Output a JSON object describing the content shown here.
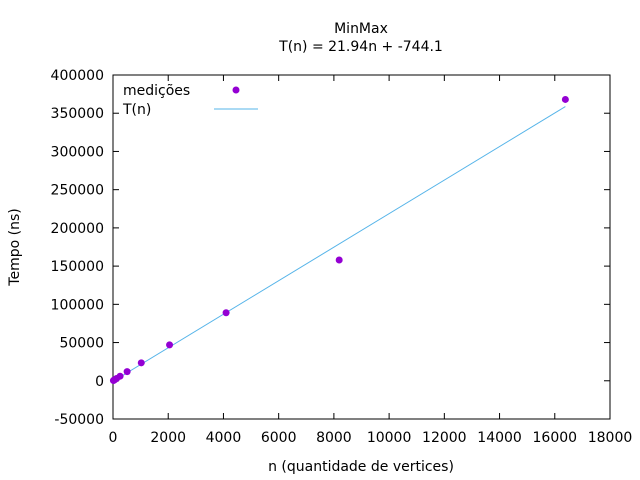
{
  "chart_data": {
    "type": "scatter",
    "title": "MinMax",
    "subtitle": "T(n) = 21.94n + -744.1",
    "xlabel": "n (quantidade de vertices)",
    "ylabel": "Tempo (ns)",
    "xlim": [
      0,
      18000
    ],
    "ylim": [
      -50000,
      400000
    ],
    "xticks": [
      0,
      2000,
      4000,
      6000,
      8000,
      10000,
      12000,
      14000,
      16000,
      18000
    ],
    "yticks": [
      -50000,
      0,
      50000,
      100000,
      150000,
      200000,
      250000,
      300000,
      350000,
      400000
    ],
    "grid": false,
    "legend_position": "top-left",
    "series": [
      {
        "name": "medições",
        "kind": "points",
        "color": "#9400d3",
        "points": [
          [
            16,
            300
          ],
          [
            32,
            700
          ],
          [
            64,
            1400
          ],
          [
            128,
            3000
          ],
          [
            256,
            6000
          ],
          [
            512,
            12000
          ],
          [
            1024,
            23500
          ],
          [
            2048,
            47000
          ],
          [
            4096,
            89000
          ],
          [
            8192,
            158000
          ],
          [
            16384,
            368000
          ]
        ]
      },
      {
        "name": "T(n)",
        "kind": "line",
        "color": "#56b4e9",
        "slope": 21.94,
        "intercept": -744.1,
        "x_range": [
          16,
          16384
        ]
      }
    ]
  }
}
